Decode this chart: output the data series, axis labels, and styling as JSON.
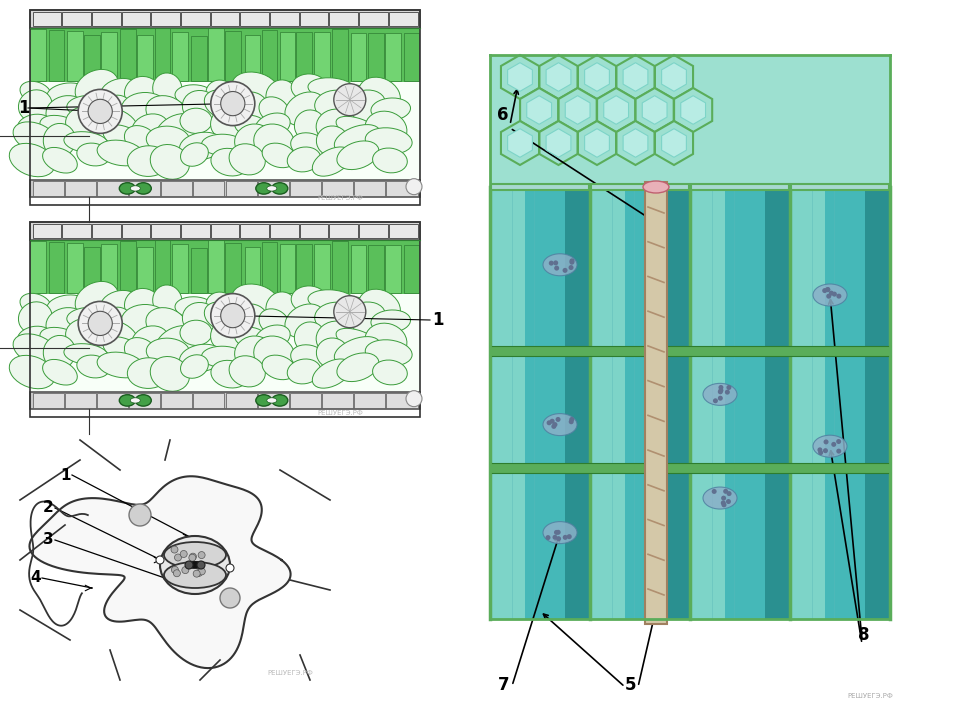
{
  "background_color": "#ffffff",
  "fig_width": 9.6,
  "fig_height": 7.2,
  "dpi": 100,
  "watermark": "РЕШУЕГЭ.РФ",
  "palisade_green": "#5abf5a",
  "palisade_dark": "#3a9c3a",
  "spongy_green": "#72c872",
  "spongy_cell_fill": "#e8f5e8",
  "spongy_cell_edge": "#3a9c3a",
  "guard_cell_fill": "#d8d8d8",
  "guard_cell_edge": "#444444",
  "epidermis_fill": "#c8c8c8",
  "epidermis_edge": "#555555",
  "stomata_green": "#2e8b2e",
  "outline": "#333333",
  "white": "#ffffff",
  "teal1": "#5bbfbf",
  "teal2": "#7dd4c8",
  "teal3": "#4aa8a8",
  "green_wall": "#6abf6a",
  "cell_bg": "#a8ddd8"
}
